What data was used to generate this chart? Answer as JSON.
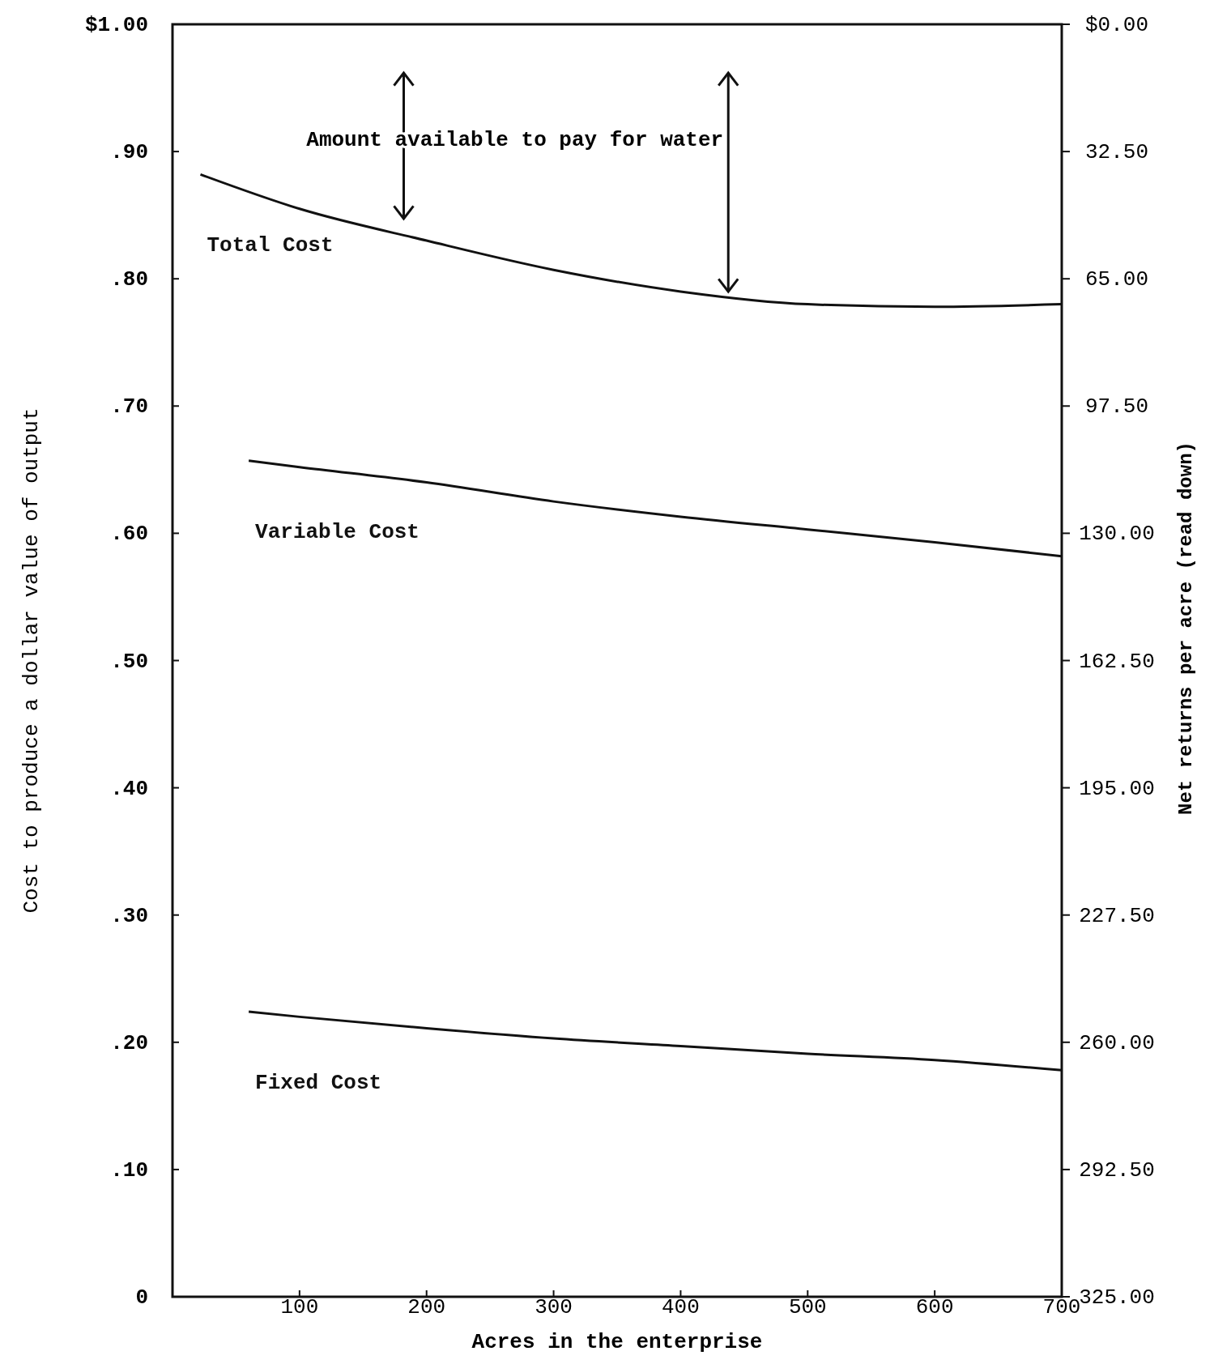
{
  "chart_data": {
    "type": "line",
    "xlabel": "Acres in the enterprise",
    "ylabel": "Cost to produce a dollar value of output",
    "y2label": "Net returns per acre (read down)",
    "xlim": [
      0,
      700
    ],
    "xticks": [
      100,
      200,
      300,
      400,
      500,
      600,
      700
    ],
    "ylim": [
      0,
      1
    ],
    "yticks": [
      {
        "value": 0,
        "label": "0"
      },
      {
        "value": 0.1,
        "label": ".10"
      },
      {
        "value": 0.2,
        "label": ".20"
      },
      {
        "value": 0.3,
        "label": ".30"
      },
      {
        "value": 0.4,
        "label": ".40"
      },
      {
        "value": 0.5,
        "label": ".50"
      },
      {
        "value": 0.6,
        "label": ".60"
      },
      {
        "value": 0.7,
        "label": ".70"
      },
      {
        "value": 0.8,
        "label": ".80"
      },
      {
        "value": 0.9,
        "label": ".90"
      },
      {
        "value": 1,
        "label": "$1.00"
      }
    ],
    "y2lim": [
      325,
      0
    ],
    "y2ticks": [
      {
        "value": 0,
        "label": "$0.00"
      },
      {
        "value": 32.5,
        "label": "32.50"
      },
      {
        "value": 65,
        "label": "65.00"
      },
      {
        "value": 97.5,
        "label": "97.50"
      },
      {
        "value": 130,
        "label": "130.00"
      },
      {
        "value": 162.5,
        "label": "162.50"
      },
      {
        "value": 195,
        "label": "195.00"
      },
      {
        "value": 227.5,
        "label": "227.50"
      },
      {
        "value": 260,
        "label": "260.00"
      },
      {
        "value": 292.5,
        "label": "292.50"
      },
      {
        "value": 325,
        "label": "325.00"
      }
    ],
    "annotations": [
      "Amount available to pay for water"
    ],
    "series": [
      {
        "name": "Total Cost",
        "color": "#111111",
        "x": [
          22,
          100,
          200,
          300,
          400,
          500,
          600,
          700
        ],
        "values": [
          0.882,
          0.855,
          0.83,
          0.807,
          0.79,
          0.78,
          0.778,
          0.78
        ]
      },
      {
        "name": "Variable Cost",
        "color": "#111111",
        "x": [
          60,
          100,
          200,
          300,
          400,
          500,
          600,
          700
        ],
        "values": [
          0.657,
          0.652,
          0.64,
          0.625,
          0.613,
          0.603,
          0.593,
          0.582
        ]
      },
      {
        "name": "Fixed Cost",
        "color": "#111111",
        "x": [
          60,
          100,
          200,
          300,
          400,
          500,
          600,
          700
        ],
        "values": [
          0.224,
          0.22,
          0.211,
          0.203,
          0.197,
          0.191,
          0.186,
          0.178
        ]
      }
    ]
  }
}
